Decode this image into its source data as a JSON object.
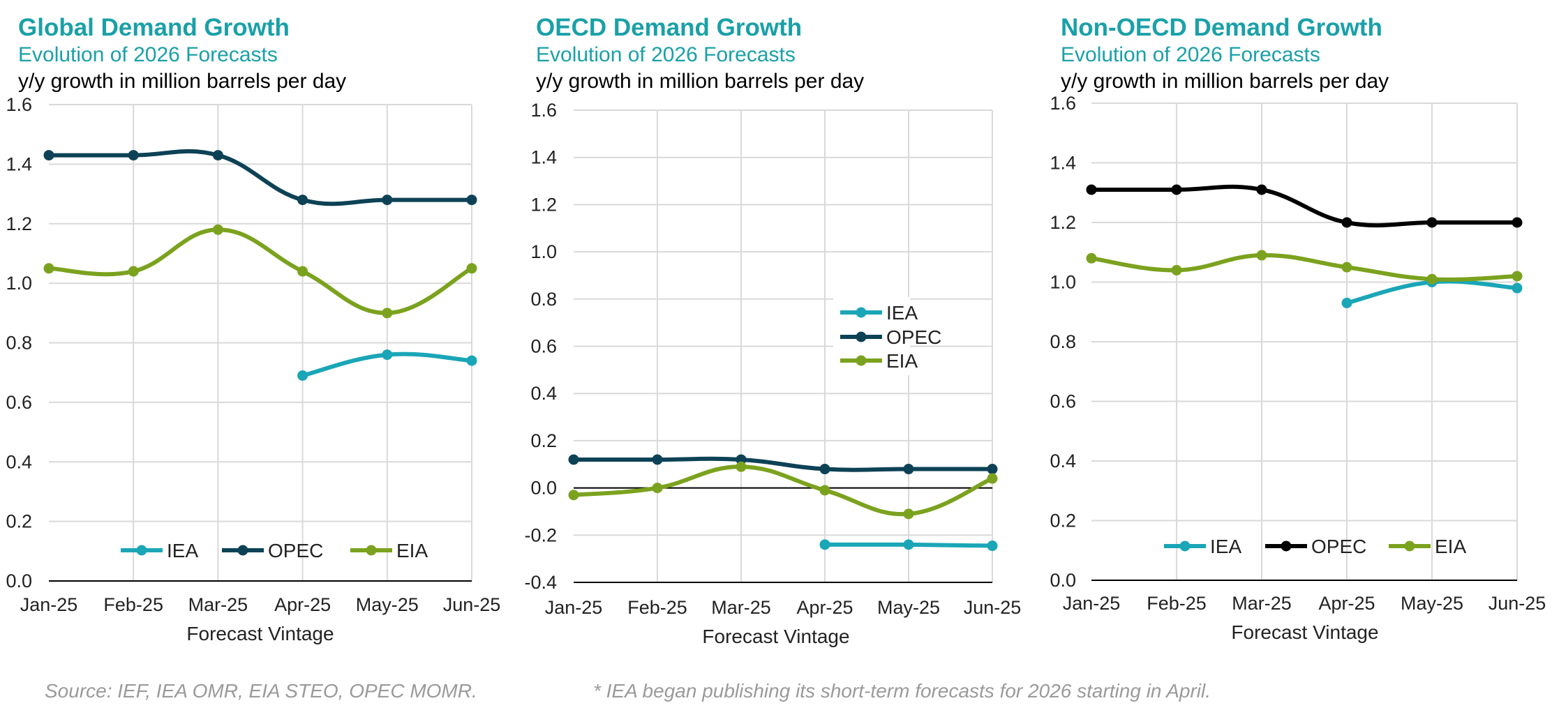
{
  "colors": {
    "IEA": "#1AA6B7",
    "OPEC": "#0D4256",
    "EIA": "#7BA21E",
    "OPEC_alt": "#000000",
    "title": "#1AA0A8"
  },
  "footnotes": {
    "source": "Source: IEF, IEA OMR, EIA STEO, OPEC MOMR.",
    "note": "* IEA began publishing its short-term forecasts for 2026 starting in April."
  },
  "chart_data": [
    {
      "type": "line",
      "title": "Global Demand Growth",
      "subtitle": "Evolution of 2026 Forecasts",
      "ylabel": "y/y growth in million barrels per day",
      "xlabel": "Forecast Vintage",
      "categories": [
        "Jan-25",
        "Feb-25",
        "Mar-25",
        "Apr-25",
        "May-25",
        "Jun-25"
      ],
      "ylim": [
        0.0,
        1.6
      ],
      "yticks": [
        "0.0",
        "0.2",
        "0.4",
        "0.6",
        "0.8",
        "1.0",
        "1.2",
        "1.4",
        "1.6"
      ],
      "legend_position": "bottom",
      "series": [
        {
          "name": "IEA",
          "values": [
            null,
            null,
            null,
            0.69,
            0.76,
            0.74
          ]
        },
        {
          "name": "OPEC",
          "values": [
            1.43,
            1.43,
            1.43,
            1.28,
            1.28,
            1.28
          ]
        },
        {
          "name": "EIA",
          "values": [
            1.05,
            1.04,
            1.18,
            1.04,
            0.9,
            1.05
          ]
        }
      ]
    },
    {
      "type": "line",
      "title": "OECD Demand Growth",
      "subtitle": "Evolution of 2026 Forecasts",
      "ylabel": "y/y growth in million barrels per day",
      "xlabel": "Forecast Vintage",
      "categories": [
        "Jan-25",
        "Feb-25",
        "Mar-25",
        "Apr-25",
        "May-25",
        "Jun-25"
      ],
      "ylim": [
        -0.4,
        1.6
      ],
      "yticks": [
        "-0.4",
        "-0.2",
        "0.0",
        "0.2",
        "0.4",
        "0.6",
        "0.8",
        "1.0",
        "1.2",
        "1.4",
        "1.6"
      ],
      "legend_position": "right-middle",
      "series": [
        {
          "name": "IEA",
          "values": [
            null,
            null,
            null,
            -0.24,
            -0.24,
            -0.245
          ]
        },
        {
          "name": "OPEC",
          "values": [
            0.12,
            0.12,
            0.12,
            0.08,
            0.08,
            0.08
          ]
        },
        {
          "name": "EIA",
          "values": [
            -0.03,
            0.0,
            0.09,
            -0.01,
            -0.11,
            0.04
          ]
        }
      ]
    },
    {
      "type": "line",
      "title": "Non-OECD Demand Growth",
      "subtitle": "Evolution of 2026 Forecasts",
      "ylabel": "y/y growth in million barrels per day",
      "xlabel": "Forecast Vintage",
      "categories": [
        "Jan-25",
        "Feb-25",
        "Mar-25",
        "Apr-25",
        "May-25",
        "Jun-25"
      ],
      "ylim": [
        0.0,
        1.6
      ],
      "yticks": [
        "0.0",
        "0.2",
        "0.4",
        "0.6",
        "0.8",
        "1.0",
        "1.2",
        "1.4",
        "1.6"
      ],
      "legend_position": "bottom",
      "series": [
        {
          "name": "IEA",
          "values": [
            null,
            null,
            null,
            0.93,
            1.0,
            0.98
          ]
        },
        {
          "name": "OPEC",
          "values": [
            1.31,
            1.31,
            1.31,
            1.2,
            1.2,
            1.2
          ]
        },
        {
          "name": "EIA",
          "values": [
            1.08,
            1.04,
            1.09,
            1.05,
            1.01,
            1.02
          ]
        }
      ]
    }
  ]
}
